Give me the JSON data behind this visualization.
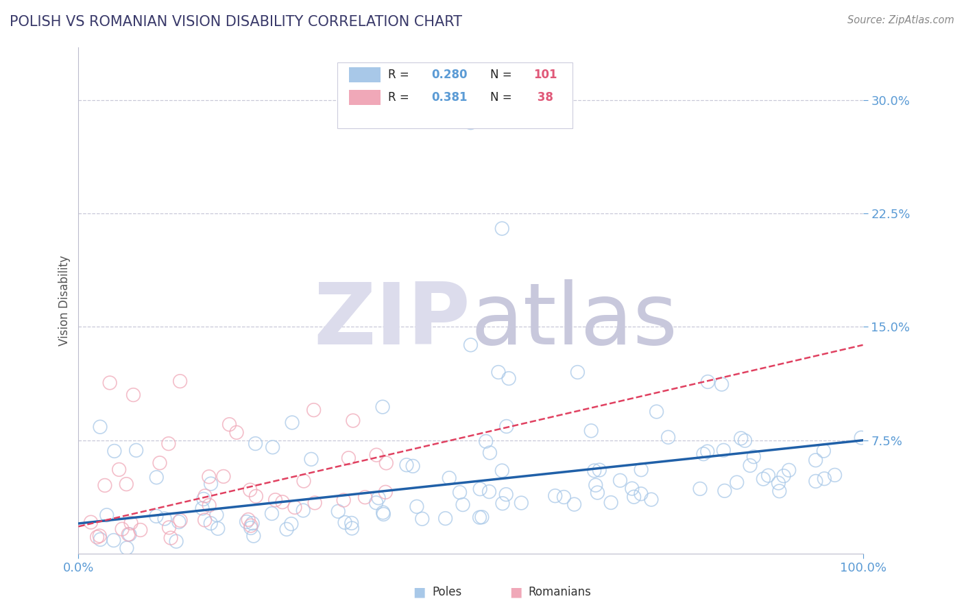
{
  "title": "POLISH VS ROMANIAN VISION DISABILITY CORRELATION CHART",
  "source": "Source: ZipAtlas.com",
  "ylabel": "Vision Disability",
  "xlim": [
    0.0,
    1.0
  ],
  "ylim": [
    0.0,
    0.335
  ],
  "yticks": [
    0.075,
    0.15,
    0.225,
    0.3
  ],
  "ytick_labels": [
    "7.5%",
    "15.0%",
    "22.5%",
    "30.0%"
  ],
  "poles_R": 0.28,
  "poles_N": 101,
  "romanians_R": 0.381,
  "romanians_N": 38,
  "blue_scatter_color": "#A8C8E8",
  "pink_scatter_color": "#F0A8B8",
  "blue_line_color": "#2060A8",
  "pink_line_color": "#E04060",
  "title_color": "#3A3A6A",
  "axis_tick_color": "#5B9BD5",
  "grid_color": "#C8C8D8",
  "background_color": "#FFFFFF",
  "watermark_zip_color": "#DCDCEC",
  "watermark_atlas_color": "#C8C8DC",
  "legend_label_color": "#222222",
  "legend_value_color": "#5B9BD5",
  "legend_N_color": "#E05878",
  "ylabel_color": "#555555",
  "source_color": "#888888"
}
